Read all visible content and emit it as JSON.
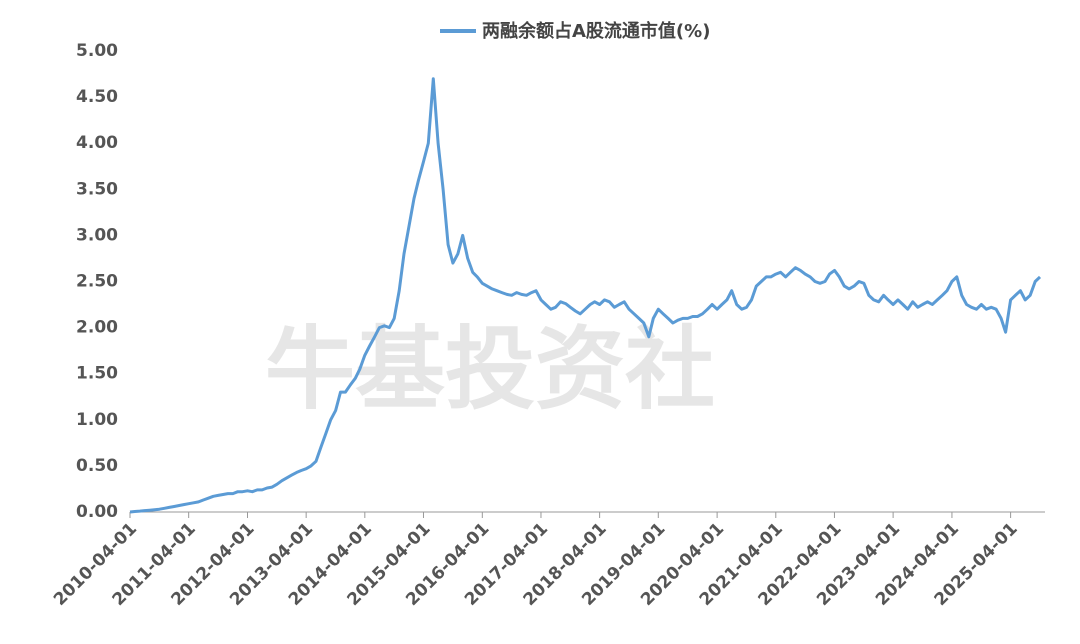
{
  "chart_data": {
    "type": "line",
    "legend_label": "两融余额占A股流通市值(%)",
    "watermark": "牛基投资社",
    "x": [
      "2010-04-01",
      "2010-05-01",
      "2010-06-01",
      "2010-07-01",
      "2010-08-01",
      "2010-09-01",
      "2010-10-01",
      "2010-11-01",
      "2010-12-01",
      "2011-01-01",
      "2011-02-01",
      "2011-03-01",
      "2011-04-01",
      "2011-05-01",
      "2011-06-01",
      "2011-07-01",
      "2011-08-01",
      "2011-09-01",
      "2011-10-01",
      "2011-11-01",
      "2011-12-01",
      "2012-01-01",
      "2012-02-01",
      "2012-03-01",
      "2012-04-01",
      "2012-05-01",
      "2012-06-01",
      "2012-07-01",
      "2012-08-01",
      "2012-09-01",
      "2012-10-01",
      "2012-11-01",
      "2012-12-01",
      "2013-01-01",
      "2013-02-01",
      "2013-03-01",
      "2013-04-01",
      "2013-05-01",
      "2013-06-01",
      "2013-07-01",
      "2013-08-01",
      "2013-09-01",
      "2013-10-01",
      "2013-11-01",
      "2013-12-01",
      "2014-01-01",
      "2014-02-01",
      "2014-03-01",
      "2014-04-01",
      "2014-05-01",
      "2014-06-01",
      "2014-07-01",
      "2014-08-01",
      "2014-09-01",
      "2014-10-01",
      "2014-11-01",
      "2014-12-01",
      "2015-01-01",
      "2015-02-01",
      "2015-03-01",
      "2015-04-01",
      "2015-05-01",
      "2015-06-01",
      "2015-07-01",
      "2015-08-01",
      "2015-09-01",
      "2015-10-01",
      "2015-11-01",
      "2015-12-01",
      "2016-01-01",
      "2016-02-01",
      "2016-03-01",
      "2016-04-01",
      "2016-05-01",
      "2016-06-01",
      "2016-07-01",
      "2016-08-01",
      "2016-09-01",
      "2016-10-01",
      "2016-11-01",
      "2016-12-01",
      "2017-01-01",
      "2017-02-01",
      "2017-03-01",
      "2017-04-01",
      "2017-05-01",
      "2017-06-01",
      "2017-07-01",
      "2017-08-01",
      "2017-09-01",
      "2017-10-01",
      "2017-11-01",
      "2017-12-01",
      "2018-01-01",
      "2018-02-01",
      "2018-03-01",
      "2018-04-01",
      "2018-05-01",
      "2018-06-01",
      "2018-07-01",
      "2018-08-01",
      "2018-09-01",
      "2018-10-01",
      "2018-11-01",
      "2018-12-01",
      "2019-01-01",
      "2019-02-01",
      "2019-03-01",
      "2019-04-01",
      "2019-05-01",
      "2019-06-01",
      "2019-07-01",
      "2019-08-01",
      "2019-09-01",
      "2019-10-01",
      "2019-11-01",
      "2019-12-01",
      "2020-01-01",
      "2020-02-01",
      "2020-03-01",
      "2020-04-01",
      "2020-05-01",
      "2020-06-01",
      "2020-07-01",
      "2020-08-01",
      "2020-09-01",
      "2020-10-01",
      "2020-11-01",
      "2020-12-01",
      "2021-01-01",
      "2021-02-01",
      "2021-03-01",
      "2021-04-01",
      "2021-05-01",
      "2021-06-01",
      "2021-07-01",
      "2021-08-01",
      "2021-09-01",
      "2021-10-01",
      "2021-11-01",
      "2021-12-01",
      "2022-01-01",
      "2022-02-01",
      "2022-03-01",
      "2022-04-01",
      "2022-05-01",
      "2022-06-01",
      "2022-07-01",
      "2022-08-01",
      "2022-09-01",
      "2022-10-01",
      "2022-11-01",
      "2022-12-01",
      "2023-01-01",
      "2023-02-01",
      "2023-03-01",
      "2023-04-01",
      "2023-05-01",
      "2023-06-01",
      "2023-07-01",
      "2023-08-01",
      "2023-09-01",
      "2023-10-01",
      "2023-11-01",
      "2023-12-01",
      "2024-01-01",
      "2024-02-01",
      "2024-03-01",
      "2024-04-01",
      "2024-05-01",
      "2024-06-01",
      "2024-07-01",
      "2024-08-01",
      "2024-09-01",
      "2024-10-01",
      "2024-11-01",
      "2024-12-01",
      "2025-01-01",
      "2025-02-01",
      "2025-03-01",
      "2025-04-01",
      "2025-05-01",
      "2025-06-01",
      "2025-07-01",
      "2025-08-01",
      "2025-09-01",
      "2025-10-01"
    ],
    "series": [
      {
        "name": "两融余额占A股流通市值(%)",
        "color": "#5b9bd5",
        "values": [
          0.0,
          0.005,
          0.01,
          0.015,
          0.02,
          0.025,
          0.03,
          0.04,
          0.05,
          0.06,
          0.07,
          0.08,
          0.09,
          0.1,
          0.11,
          0.13,
          0.15,
          0.17,
          0.18,
          0.19,
          0.2,
          0.2,
          0.22,
          0.22,
          0.23,
          0.22,
          0.24,
          0.24,
          0.26,
          0.27,
          0.3,
          0.34,
          0.37,
          0.4,
          0.43,
          0.45,
          0.47,
          0.5,
          0.55,
          0.7,
          0.85,
          1.0,
          1.1,
          1.3,
          1.3,
          1.38,
          1.45,
          1.55,
          1.7,
          1.8,
          1.9,
          2.0,
          2.02,
          2.0,
          2.1,
          2.4,
          2.8,
          3.1,
          3.4,
          3.6,
          3.8,
          4.0,
          4.7,
          4.0,
          3.5,
          2.9,
          2.7,
          2.8,
          3.0,
          2.75,
          2.6,
          2.55,
          2.48,
          2.45,
          2.42,
          2.4,
          2.38,
          2.36,
          2.35,
          2.38,
          2.36,
          2.35,
          2.38,
          2.4,
          2.3,
          2.25,
          2.2,
          2.22,
          2.28,
          2.26,
          2.22,
          2.18,
          2.15,
          2.2,
          2.25,
          2.28,
          2.25,
          2.3,
          2.28,
          2.22,
          2.25,
          2.28,
          2.2,
          2.15,
          2.1,
          2.05,
          1.9,
          2.1,
          2.2,
          2.15,
          2.1,
          2.05,
          2.08,
          2.1,
          2.1,
          2.12,
          2.12,
          2.15,
          2.2,
          2.25,
          2.2,
          2.25,
          2.3,
          2.4,
          2.25,
          2.2,
          2.22,
          2.3,
          2.45,
          2.5,
          2.55,
          2.55,
          2.58,
          2.6,
          2.55,
          2.6,
          2.65,
          2.62,
          2.58,
          2.55,
          2.5,
          2.48,
          2.5,
          2.58,
          2.62,
          2.55,
          2.45,
          2.42,
          2.45,
          2.5,
          2.48,
          2.35,
          2.3,
          2.28,
          2.35,
          2.3,
          2.25,
          2.3,
          2.25,
          2.2,
          2.28,
          2.22,
          2.25,
          2.28,
          2.25,
          2.3,
          2.35,
          2.4,
          2.5,
          2.55,
          2.35,
          2.25,
          2.22,
          2.2,
          2.25,
          2.2,
          2.22,
          2.2,
          2.1,
          1.95,
          2.3,
          2.35,
          2.4,
          2.3,
          2.35,
          2.5,
          2.55
        ]
      }
    ],
    "xlim": [
      "2010-04-01",
      "2025-11-01"
    ],
    "xticks": [
      "2010-04-01",
      "2011-04-01",
      "2012-04-01",
      "2013-04-01",
      "2014-04-01",
      "2015-04-01",
      "2016-04-01",
      "2017-04-01",
      "2018-04-01",
      "2019-04-01",
      "2020-04-01",
      "2021-04-01",
      "2022-04-01",
      "2023-04-01",
      "2024-04-01",
      "2025-04-01"
    ],
    "ylim": [
      0,
      5
    ],
    "yticks": [
      {
        "value": 0,
        "label": "0.00"
      },
      {
        "value": 0.5,
        "label": "0.50"
      },
      {
        "value": 1,
        "label": "1.00"
      },
      {
        "value": 1.5,
        "label": "1.50"
      },
      {
        "value": 2,
        "label": "2.00"
      },
      {
        "value": 2.5,
        "label": "2.50"
      },
      {
        "value": 3,
        "label": "3.00"
      },
      {
        "value": 3.5,
        "label": "3.50"
      },
      {
        "value": 4,
        "label": "4.00"
      },
      {
        "value": 4.5,
        "label": "4.50"
      },
      {
        "value": 5,
        "label": "5.00"
      }
    ],
    "grid": false
  }
}
